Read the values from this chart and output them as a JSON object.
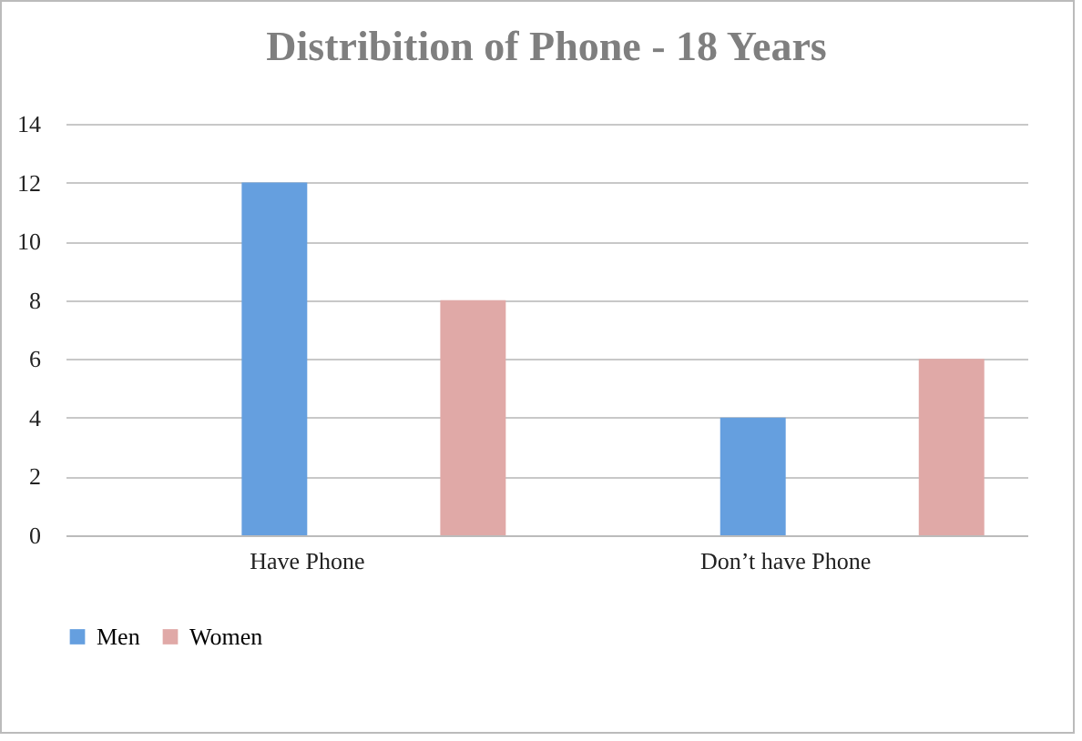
{
  "chart_data": {
    "type": "bar",
    "title": "Distribition of Phone - 18 Years",
    "categories": [
      "Have Phone",
      "Don’t have Phone"
    ],
    "series": [
      {
        "name": "Men",
        "color": "#659fdf",
        "values": [
          12,
          4
        ]
      },
      {
        "name": "Women",
        "color": "#e0a9a7",
        "values": [
          8,
          6
        ]
      }
    ],
    "ylim": [
      0,
      14
    ],
    "yticks": [
      0,
      2,
      4,
      6,
      8,
      10,
      12,
      14
    ],
    "grid": "y",
    "legend": "bottom"
  }
}
